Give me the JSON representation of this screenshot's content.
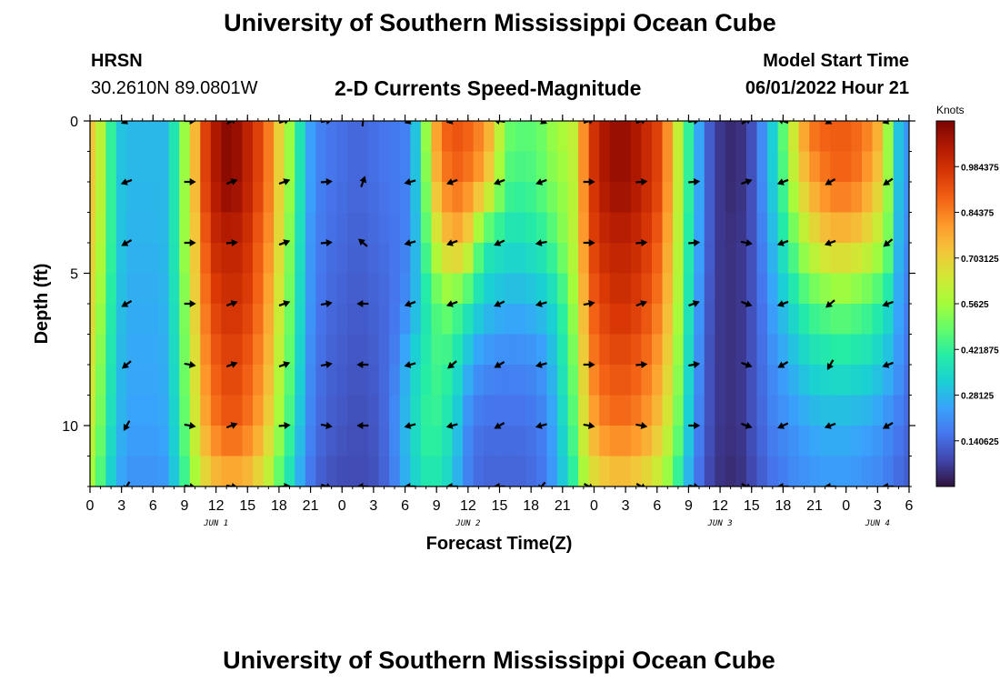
{
  "header": {
    "title": "University of Southern Mississippi Ocean Cube",
    "station": "HRSN",
    "coordinates": "30.2610N  89.0801W",
    "plot_title": "2-D Currents Speed-Magnitude",
    "model_start_label": "Model Start Time",
    "model_start_value": "06/01/2022 Hour 21"
  },
  "footer": {
    "title": "University of Southern Mississippi Ocean Cube"
  },
  "colors": {
    "colormap": [
      "#30123b",
      "#4145ab",
      "#4675ed",
      "#39a2fc",
      "#1bcfd4",
      "#24eca6",
      "#61fc6c",
      "#a4fc3b",
      "#d1e834",
      "#f3c63a",
      "#fe9b2d",
      "#f36315",
      "#d93806",
      "#b11901",
      "#7a0403"
    ],
    "arrow": "#000000",
    "axis": "#000000"
  },
  "chart_data": {
    "type": "heatmap",
    "title": "2-D Currents Speed-Magnitude",
    "xlabel": "Forecast Time(Z)",
    "ylabel": "Depth (ft)",
    "colorbar_label": "Knots",
    "x_range": [
      0,
      78
    ],
    "y_range": [
      0,
      12
    ],
    "x_tick_values": [
      0,
      3,
      6,
      9,
      12,
      15,
      18,
      21,
      24,
      27,
      30,
      33,
      36,
      39,
      42,
      45,
      48,
      51,
      54,
      57,
      60,
      63,
      66,
      69,
      72,
      75,
      78
    ],
    "x_tick_labels": [
      "0",
      "3",
      "6",
      "9",
      "12",
      "15",
      "18",
      "21",
      "0",
      "3",
      "6",
      "9",
      "12",
      "15",
      "18",
      "21",
      "0",
      "3",
      "6",
      "9",
      "12",
      "15",
      "18",
      "21",
      "0",
      "3",
      "6"
    ],
    "y_tick_values": [
      0,
      5,
      10
    ],
    "y_tick_labels": [
      "0",
      "5",
      "10"
    ],
    "date_labels": [
      {
        "text": "JUN 1",
        "x": 12
      },
      {
        "text": "JUN 2",
        "x": 36
      },
      {
        "text": "JUN 3",
        "x": 60
      },
      {
        "text": "JUN 4",
        "x": 75
      }
    ],
    "colorbar_range": [
      0,
      1.125
    ],
    "colorbar_ticks": [
      0.140625,
      0.28125,
      0.421875,
      0.5625,
      0.703125,
      0.84375,
      0.984375
    ],
    "colorbar_tick_labels": [
      "0.140625",
      "0.28125",
      "0.421875",
      "0.5625",
      "0.703125",
      "0.84375",
      "0.984375"
    ],
    "depths": [
      0,
      2,
      4,
      6,
      8,
      10,
      12
    ],
    "hours": [
      0,
      1,
      2,
      3,
      4,
      5,
      6,
      7,
      8,
      9,
      10,
      11,
      12,
      13,
      14,
      15,
      16,
      17,
      18,
      19,
      20,
      21,
      22,
      23,
      24,
      25,
      26,
      27,
      28,
      29,
      30,
      31,
      32,
      33,
      34,
      35,
      36,
      37,
      38,
      39,
      40,
      41,
      42,
      43,
      44,
      45,
      46,
      47,
      48,
      49,
      50,
      51,
      52,
      53,
      54,
      55,
      56,
      57,
      58,
      59,
      60,
      61,
      62,
      63,
      64,
      65,
      66,
      67,
      68,
      69,
      70,
      71,
      72,
      73,
      74,
      75,
      76,
      77,
      78
    ],
    "speed_knots": [
      [
        0.72,
        0.6,
        0.42,
        0.3,
        0.28,
        0.28,
        0.28,
        0.28,
        0.38,
        0.55,
        0.75,
        0.95,
        1.05,
        1.1,
        1.08,
        1.02,
        0.95,
        0.85,
        0.7,
        0.55,
        0.38,
        0.24,
        0.18,
        0.16,
        0.15,
        0.14,
        0.14,
        0.15,
        0.16,
        0.17,
        0.18,
        0.3,
        0.55,
        0.8,
        0.9,
        0.92,
        0.9,
        0.85,
        0.78,
        0.62,
        0.5,
        0.48,
        0.48,
        0.5,
        0.55,
        0.58,
        0.62,
        0.82,
        0.98,
        1.05,
        1.08,
        1.08,
        1.05,
        1.0,
        0.95,
        0.82,
        0.62,
        0.42,
        0.25,
        0.12,
        0.06,
        0.04,
        0.05,
        0.1,
        0.2,
        0.32,
        0.48,
        0.65,
        0.8,
        0.88,
        0.9,
        0.9,
        0.9,
        0.88,
        0.85,
        0.78,
        0.55,
        0.3,
        0.22
      ],
      [
        0.72,
        0.6,
        0.42,
        0.3,
        0.28,
        0.28,
        0.28,
        0.28,
        0.38,
        0.55,
        0.75,
        0.95,
        1.05,
        1.1,
        1.08,
        1.02,
        0.95,
        0.85,
        0.7,
        0.55,
        0.38,
        0.24,
        0.18,
        0.16,
        0.15,
        0.14,
        0.14,
        0.15,
        0.16,
        0.17,
        0.18,
        0.3,
        0.52,
        0.75,
        0.85,
        0.88,
        0.85,
        0.8,
        0.7,
        0.55,
        0.45,
        0.44,
        0.45,
        0.48,
        0.52,
        0.55,
        0.6,
        0.82,
        0.98,
        1.05,
        1.08,
        1.08,
        1.05,
        1.0,
        0.95,
        0.82,
        0.62,
        0.42,
        0.25,
        0.12,
        0.06,
        0.04,
        0.05,
        0.1,
        0.2,
        0.32,
        0.45,
        0.6,
        0.72,
        0.8,
        0.85,
        0.88,
        0.88,
        0.86,
        0.8,
        0.72,
        0.55,
        0.3,
        0.22
      ],
      [
        0.7,
        0.58,
        0.42,
        0.3,
        0.27,
        0.27,
        0.27,
        0.28,
        0.38,
        0.55,
        0.72,
        0.9,
        1.0,
        1.02,
        1.02,
        0.98,
        0.9,
        0.82,
        0.68,
        0.52,
        0.36,
        0.22,
        0.17,
        0.15,
        0.14,
        0.13,
        0.13,
        0.14,
        0.15,
        0.16,
        0.18,
        0.28,
        0.46,
        0.62,
        0.72,
        0.75,
        0.68,
        0.5,
        0.4,
        0.38,
        0.36,
        0.36,
        0.38,
        0.4,
        0.45,
        0.52,
        0.6,
        0.8,
        0.95,
        1.0,
        1.02,
        1.02,
        1.0,
        0.96,
        0.9,
        0.78,
        0.6,
        0.4,
        0.24,
        0.12,
        0.06,
        0.05,
        0.06,
        0.1,
        0.18,
        0.28,
        0.38,
        0.48,
        0.58,
        0.65,
        0.7,
        0.72,
        0.72,
        0.7,
        0.66,
        0.6,
        0.5,
        0.28,
        0.2
      ],
      [
        0.68,
        0.55,
        0.4,
        0.29,
        0.26,
        0.26,
        0.26,
        0.27,
        0.36,
        0.52,
        0.7,
        0.86,
        0.95,
        0.98,
        0.98,
        0.95,
        0.88,
        0.78,
        0.64,
        0.5,
        0.35,
        0.22,
        0.16,
        0.14,
        0.13,
        0.12,
        0.12,
        0.13,
        0.14,
        0.16,
        0.2,
        0.28,
        0.38,
        0.46,
        0.5,
        0.46,
        0.4,
        0.34,
        0.3,
        0.28,
        0.27,
        0.27,
        0.28,
        0.3,
        0.34,
        0.42,
        0.55,
        0.75,
        0.9,
        0.95,
        0.98,
        0.98,
        0.96,
        0.92,
        0.86,
        0.75,
        0.58,
        0.38,
        0.22,
        0.11,
        0.06,
        0.05,
        0.06,
        0.1,
        0.16,
        0.24,
        0.3,
        0.36,
        0.42,
        0.46,
        0.48,
        0.5,
        0.5,
        0.48,
        0.46,
        0.42,
        0.36,
        0.25,
        0.18
      ],
      [
        0.65,
        0.52,
        0.38,
        0.28,
        0.25,
        0.25,
        0.25,
        0.26,
        0.35,
        0.5,
        0.66,
        0.82,
        0.9,
        0.94,
        0.94,
        0.9,
        0.84,
        0.75,
        0.6,
        0.48,
        0.33,
        0.2,
        0.15,
        0.13,
        0.12,
        0.11,
        0.11,
        0.12,
        0.14,
        0.18,
        0.26,
        0.34,
        0.4,
        0.44,
        0.42,
        0.36,
        0.28,
        0.22,
        0.2,
        0.19,
        0.19,
        0.19,
        0.2,
        0.22,
        0.28,
        0.38,
        0.5,
        0.7,
        0.85,
        0.9,
        0.92,
        0.92,
        0.9,
        0.86,
        0.8,
        0.7,
        0.54,
        0.35,
        0.2,
        0.1,
        0.06,
        0.05,
        0.06,
        0.1,
        0.15,
        0.2,
        0.24,
        0.28,
        0.32,
        0.35,
        0.36,
        0.37,
        0.37,
        0.36,
        0.35,
        0.32,
        0.28,
        0.22,
        0.16
      ],
      [
        0.62,
        0.5,
        0.36,
        0.27,
        0.24,
        0.24,
        0.24,
        0.25,
        0.33,
        0.48,
        0.64,
        0.78,
        0.86,
        0.9,
        0.9,
        0.86,
        0.8,
        0.7,
        0.56,
        0.44,
        0.3,
        0.19,
        0.14,
        0.12,
        0.11,
        0.1,
        0.1,
        0.11,
        0.14,
        0.2,
        0.28,
        0.36,
        0.42,
        0.42,
        0.38,
        0.3,
        0.2,
        0.16,
        0.15,
        0.15,
        0.15,
        0.15,
        0.16,
        0.18,
        0.24,
        0.34,
        0.46,
        0.65,
        0.78,
        0.84,
        0.86,
        0.86,
        0.84,
        0.8,
        0.74,
        0.64,
        0.5,
        0.32,
        0.18,
        0.1,
        0.06,
        0.05,
        0.06,
        0.1,
        0.14,
        0.18,
        0.2,
        0.22,
        0.24,
        0.26,
        0.27,
        0.27,
        0.27,
        0.26,
        0.25,
        0.23,
        0.2,
        0.17,
        0.14
      ],
      [
        0.55,
        0.45,
        0.32,
        0.24,
        0.21,
        0.21,
        0.21,
        0.22,
        0.3,
        0.42,
        0.55,
        0.66,
        0.72,
        0.74,
        0.74,
        0.72,
        0.66,
        0.58,
        0.46,
        0.36,
        0.25,
        0.16,
        0.12,
        0.1,
        0.09,
        0.09,
        0.09,
        0.1,
        0.13,
        0.18,
        0.26,
        0.33,
        0.38,
        0.38,
        0.34,
        0.26,
        0.18,
        0.14,
        0.13,
        0.13,
        0.13,
        0.13,
        0.14,
        0.16,
        0.22,
        0.3,
        0.4,
        0.55,
        0.64,
        0.68,
        0.7,
        0.7,
        0.68,
        0.65,
        0.6,
        0.52,
        0.4,
        0.26,
        0.15,
        0.08,
        0.05,
        0.04,
        0.05,
        0.08,
        0.12,
        0.15,
        0.17,
        0.19,
        0.2,
        0.21,
        0.22,
        0.22,
        0.22,
        0.21,
        0.2,
        0.19,
        0.17,
        0.14,
        0.12
      ]
    ],
    "arrow_hours": [
      3.5,
      9.5,
      13.5,
      18.5,
      22.5,
      26,
      30.5,
      34.5,
      39,
      43,
      47.5,
      52.5,
      57.5,
      62.5,
      66,
      70.5,
      76
    ],
    "arrow_depths": [
      0,
      2,
      4,
      6,
      8,
      10,
      12
    ],
    "arrow_directions_deg": [
      [
        -155,
        0,
        30,
        20,
        10,
        85,
        -160,
        -165,
        170,
        -25,
        20,
        20,
        10,
        30,
        160,
        -150,
        -160
      ],
      [
        -160,
        0,
        20,
        20,
        5,
        70,
        -165,
        -160,
        -160,
        -160,
        0,
        5,
        5,
        20,
        -160,
        -150,
        -145
      ],
      [
        -150,
        0,
        5,
        20,
        5,
        140,
        -165,
        -160,
        -155,
        -170,
        0,
        5,
        5,
        -10,
        -160,
        -160,
        -140
      ],
      [
        -150,
        0,
        20,
        20,
        10,
        180,
        -160,
        -160,
        -155,
        -165,
        10,
        20,
        20,
        -20,
        -160,
        -140,
        -160
      ],
      [
        -140,
        -10,
        20,
        20,
        10,
        180,
        -165,
        -140,
        -150,
        -165,
        0,
        5,
        10,
        -20,
        -150,
        -120,
        -160
      ],
      [
        -120,
        -10,
        20,
        5,
        -10,
        180,
        -165,
        -165,
        -150,
        -165,
        -10,
        -10,
        0,
        -20,
        -155,
        -160,
        -150
      ],
      [
        -120,
        -10,
        -10,
        5,
        -20,
        180,
        180,
        180,
        180,
        -130,
        -30,
        -30,
        -10,
        -30,
        180,
        180,
        180
      ]
    ]
  }
}
